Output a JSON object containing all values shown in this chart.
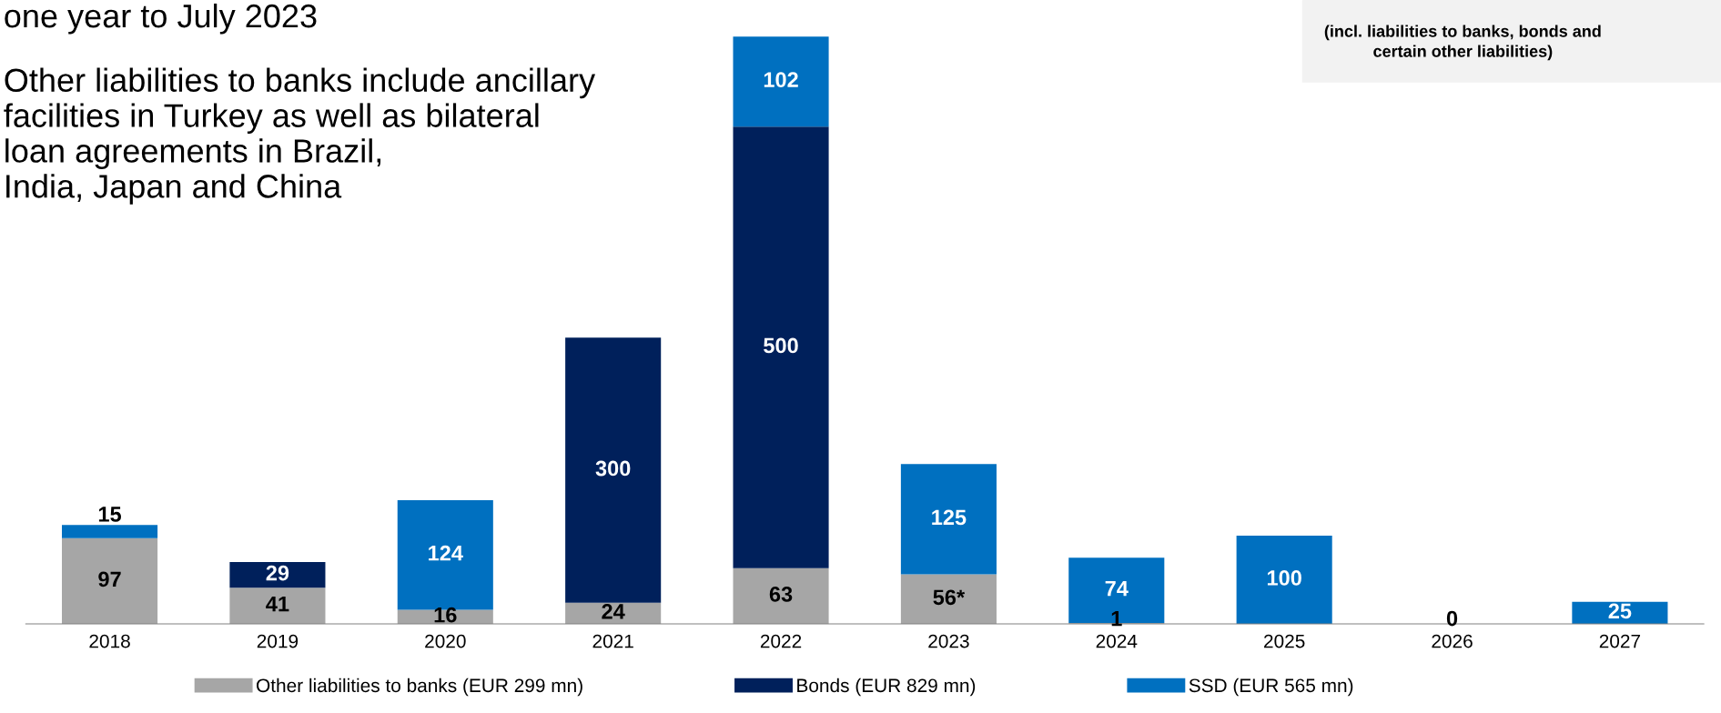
{
  "chart_data": {
    "type": "bar",
    "stacked": true,
    "categories": [
      "2018",
      "2019",
      "2020",
      "2021",
      "2022",
      "2023",
      "2024",
      "2025",
      "2026",
      "2027"
    ],
    "series": [
      {
        "name": "Other liabilities to banks (EUR 299 mn)",
        "color": "#a6a6a6",
        "values": [
          97,
          41,
          16,
          24,
          63,
          56,
          1,
          0,
          0,
          0
        ],
        "value_labels": [
          "97",
          "41",
          "16",
          "24",
          "63",
          "56*",
          "1",
          null,
          "0",
          null
        ]
      },
      {
        "name": "Bonds (EUR 829 mn)",
        "color": "#00205b",
        "values": [
          0,
          29,
          0,
          300,
          500,
          0,
          0,
          0,
          0,
          0
        ],
        "value_labels": [
          null,
          "29",
          null,
          "300",
          "500",
          null,
          null,
          null,
          null,
          null
        ]
      },
      {
        "name": "SSD (EUR 565 mn)",
        "color": "#0070c0",
        "values": [
          15,
          0,
          124,
          0,
          102,
          125,
          74,
          100,
          0,
          25
        ],
        "value_labels": [
          "15",
          null,
          "124",
          null,
          "102",
          "125",
          "74",
          "100",
          null,
          "25"
        ]
      }
    ],
    "legend": "bottom",
    "annotations": [
      "one year to July 2023",
      "Other liabilities to banks include ancillary\nfacilities in Turkey as well as bilateral\nloan agreements in Brazil,\nIndia, Japan and China",
      "(incl. liabilities to banks, bonds and\ncertain other liabilities)"
    ]
  }
}
